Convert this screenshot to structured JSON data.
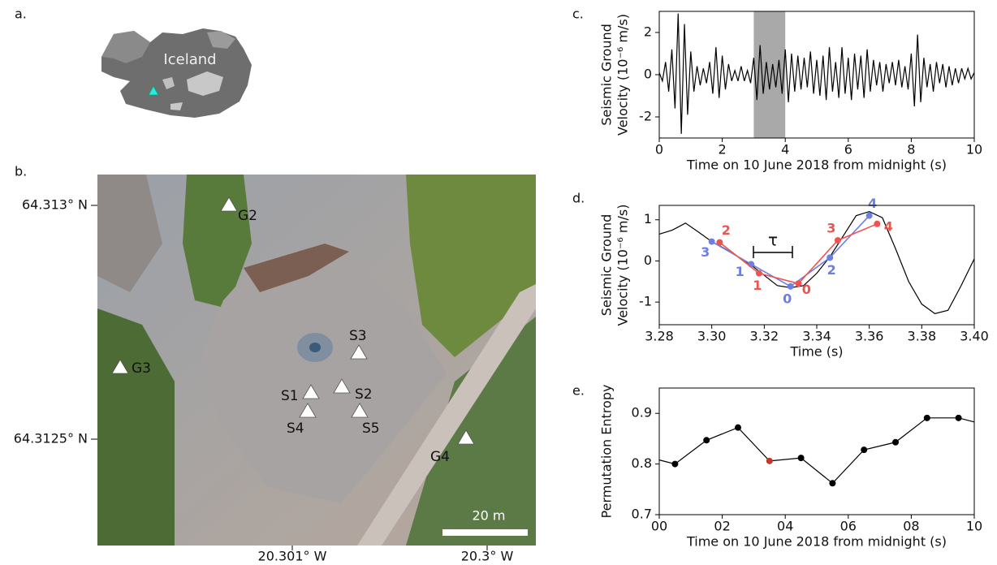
{
  "panel_a": {
    "label": "a.",
    "map_label": "Iceland"
  },
  "panel_b": {
    "label": "b.",
    "lat_labels": [
      "64.313° N",
      "64.3125° N"
    ],
    "lon_labels": [
      "20.301° W",
      "20.3° W"
    ],
    "stations": [
      "G2",
      "G3",
      "S3",
      "S1",
      "S2",
      "S4",
      "S5",
      "G4"
    ],
    "scale_label": "20 m"
  },
  "chart_data": [
    {
      "type": "line",
      "panel_label": "c.",
      "xlabel": "Time on 10 June 2018 from midnight (s)",
      "ylabel": [
        "Seismic Ground",
        "Velocity (10⁻⁶ m/s)"
      ],
      "xlim": [
        0,
        10
      ],
      "ylim": [
        -3,
        3
      ],
      "xticks": [
        0,
        2,
        4,
        6,
        8,
        10
      ],
      "yticks": [
        -2,
        0,
        2
      ],
      "highlight": {
        "x": [
          3,
          4
        ],
        "color": "#a9a9a9"
      },
      "series": [
        {
          "color": "#000000",
          "x": [
            0,
            0.1,
            0.2,
            0.3,
            0.4,
            0.5,
            0.6,
            0.7,
            0.8,
            0.9,
            1,
            1.1,
            1.2,
            1.3,
            1.4,
            1.5,
            1.6,
            1.7,
            1.8,
            1.9,
            2,
            2.1,
            2.2,
            2.3,
            2.4,
            2.5,
            2.6,
            2.7,
            2.8,
            2.9,
            3,
            3.1,
            3.2,
            3.3,
            3.4,
            3.5,
            3.6,
            3.7,
            3.8,
            3.9,
            4,
            4.1,
            4.2,
            4.3,
            4.4,
            4.5,
            4.6,
            4.7,
            4.8,
            4.9,
            5,
            5.1,
            5.2,
            5.3,
            5.4,
            5.5,
            5.6,
            5.7,
            5.8,
            5.9,
            6,
            6.1,
            6.2,
            6.3,
            6.4,
            6.5,
            6.6,
            6.7,
            6.8,
            6.9,
            7,
            7.1,
            7.2,
            7.3,
            7.4,
            7.5,
            7.6,
            7.7,
            7.8,
            7.9,
            8,
            8.1,
            8.2,
            8.3,
            8.4,
            8.5,
            8.6,
            8.7,
            8.8,
            8.9,
            9,
            9.1,
            9.2,
            9.3,
            9.4,
            9.5,
            9.6,
            9.7,
            9.8,
            9.9,
            10
          ],
          "values": [
            0.1,
            -0.3,
            0.6,
            -0.8,
            1.2,
            -1.6,
            2.9,
            -2.8,
            2.4,
            -1.9,
            1.1,
            -0.8,
            0.4,
            -0.5,
            0.3,
            -0.4,
            0.6,
            -0.9,
            1.3,
            -1.1,
            0.9,
            -0.7,
            0.5,
            -0.3,
            0.2,
            -0.3,
            0.4,
            -0.3,
            0.2,
            -0.4,
            0.8,
            -1.2,
            1.4,
            -0.9,
            0.6,
            -0.7,
            0.5,
            -0.6,
            0.7,
            -0.9,
            1.2,
            -1.3,
            1.0,
            -0.8,
            0.9,
            -0.7,
            0.8,
            -0.6,
            1.1,
            -0.9,
            0.7,
            -1.0,
            0.9,
            -1.2,
            1.3,
            -0.8,
            0.6,
            -1.1,
            1.3,
            -0.9,
            0.8,
            -1.2,
            1.0,
            -0.7,
            0.9,
            -1.1,
            1.2,
            -0.8,
            0.7,
            -0.5,
            0.6,
            -0.8,
            0.5,
            -0.4,
            0.6,
            -0.5,
            0.7,
            -0.6,
            0.4,
            -0.7,
            1.0,
            -1.5,
            1.9,
            -1.3,
            0.8,
            -0.6,
            0.5,
            -0.8,
            0.6,
            -0.4,
            0.5,
            -0.6,
            0.4,
            -0.5,
            0.3,
            -0.4,
            0.3,
            -0.2,
            0.3,
            -0.2,
            0.1
          ]
        }
      ]
    },
    {
      "type": "line",
      "panel_label": "d.",
      "xlabel": "Time (s)",
      "ylabel": [
        "Seismic Ground",
        "Velocity (10⁻⁶ m/s)"
      ],
      "xlim": [
        3.28,
        3.4
      ],
      "ylim": [
        -1.55,
        1.35
      ],
      "xticks": [
        3.28,
        {
          "value": 3.3,
          "label": "3.30"
        },
        3.32,
        3.34,
        3.36,
        3.38,
        {
          "value": 3.4,
          "label": "3.40"
        }
      ],
      "yticks": [
        -1,
        0,
        1
      ],
      "annotation": "τ",
      "series": [
        {
          "color": "#000000",
          "x": [
            3.28,
            3.285,
            3.29,
            3.295,
            3.3,
            3.305,
            3.31,
            3.315,
            3.32,
            3.325,
            3.33,
            3.335,
            3.34,
            3.345,
            3.35,
            3.355,
            3.36,
            3.365,
            3.37,
            3.375,
            3.38,
            3.385,
            3.39,
            3.395,
            3.4
          ],
          "values": [
            0.65,
            0.75,
            0.92,
            0.7,
            0.47,
            0.3,
            0.1,
            -0.1,
            -0.35,
            -0.6,
            -0.65,
            -0.6,
            -0.3,
            0.1,
            0.6,
            1.1,
            1.2,
            1.05,
            0.3,
            -0.5,
            -1.05,
            -1.28,
            -1.2,
            -0.6,
            0.05
          ]
        },
        {
          "color": "#6b7fe6",
          "markers": true,
          "x": [
            3.3,
            3.315,
            3.33,
            3.345,
            3.36
          ],
          "values": [
            0.47,
            -0.08,
            -0.62,
            0.08,
            1.1
          ],
          "point_labels": [
            "3",
            "1",
            "0",
            "2",
            "4"
          ]
        },
        {
          "color": "#ef5350",
          "markers": true,
          "x": [
            3.303,
            3.318,
            3.333,
            3.348,
            3.363
          ],
          "values": [
            0.45,
            -0.3,
            -0.55,
            0.5,
            0.9
          ],
          "point_labels": [
            "2",
            "1",
            "0",
            "3",
            "4"
          ]
        }
      ]
    },
    {
      "type": "line",
      "panel_label": "e.",
      "xlabel": "Time on 10 June 2018 from midnight (s)",
      "ylabel": [
        "Permutation Entropy"
      ],
      "xlim": [
        0,
        10
      ],
      "ylim": [
        0.7,
        0.95
      ],
      "xticks": [
        {
          "value": 0,
          "label": "00"
        },
        {
          "value": 2,
          "label": "02"
        },
        {
          "value": 4,
          "label": "04"
        },
        {
          "value": 6,
          "label": "06"
        },
        {
          "value": 8,
          "label": "08"
        },
        10
      ],
      "yticks": [
        0.7,
        0.8,
        0.9
      ],
      "series": [
        {
          "color": "#000000",
          "x": [
            0,
            0.5,
            1.5,
            2.5,
            3.5,
            4.5,
            5.5,
            6.5,
            7.5,
            8.5,
            9.5,
            10
          ],
          "values": [
            0.808,
            0.8,
            0.847,
            0.872,
            0.806,
            0.812,
            0.762,
            0.828,
            0.843,
            0.891,
            0.891,
            0.883
          ],
          "marker_colors": [
            null,
            "#000000",
            "#000000",
            "#000000",
            "#c0392b",
            "#000000",
            "#000000",
            "#000000",
            "#000000",
            "#000000",
            "#000000",
            null
          ]
        }
      ]
    }
  ]
}
